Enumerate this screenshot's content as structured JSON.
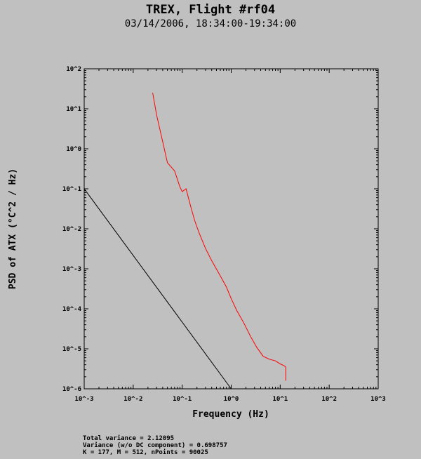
{
  "header": {
    "title": "TREX, Flight #rf04",
    "subtitle": "03/14/2006, 18:34:00-19:34:00"
  },
  "footer": {
    "total_variance": "Total variance = 2.12095",
    "variance_no_dc": "Variance (w/o DC component) = 0.698757",
    "params": "K = 177, M = 512, nPoints = 90025"
  },
  "chart_data": {
    "type": "line",
    "xlabel": "Frequency (Hz)",
    "ylabel": "PSD of ATX (°C^2 / Hz)",
    "xscale": "log",
    "yscale": "log",
    "xlim": [
      0.001,
      1000
    ],
    "ylim": [
      1e-06,
      100
    ],
    "xticks": [
      "10^-3",
      "10^-2",
      "10^-1",
      "10^0",
      "10^1",
      "10^2",
      "10^3"
    ],
    "yticks": [
      "10^-6",
      "10^-5",
      "10^-4",
      "10^-3",
      "10^-2",
      "10^-1",
      "10^0",
      "10^1",
      "10^2"
    ],
    "grid": false,
    "series": [
      {
        "color": "#ff0000",
        "x": [
          0.025,
          0.03,
          0.04,
          0.05,
          0.07,
          0.09,
          0.1,
          0.12,
          0.15,
          0.18,
          0.22,
          0.3,
          0.4,
          0.55,
          0.8,
          1.0,
          1.3,
          1.8,
          2.5,
          3.3,
          4.5,
          6.0,
          8.0,
          10.0,
          12.0,
          13.0,
          13.0
        ],
        "y": [
          25,
          7,
          1.5,
          0.45,
          0.28,
          0.11,
          0.085,
          0.1,
          0.035,
          0.016,
          0.008,
          0.0032,
          0.0016,
          0.0008,
          0.00035,
          0.00018,
          9e-05,
          4.5e-05,
          2e-05,
          1.1e-05,
          6.5e-06,
          5.5e-06,
          5e-06,
          4.2e-06,
          3.8e-06,
          3.5e-06,
          1.6e-06
        ]
      },
      {
        "color": "#000000",
        "x": [
          0.001,
          1.0
        ],
        "y": [
          0.1,
          1e-06
        ]
      }
    ]
  }
}
